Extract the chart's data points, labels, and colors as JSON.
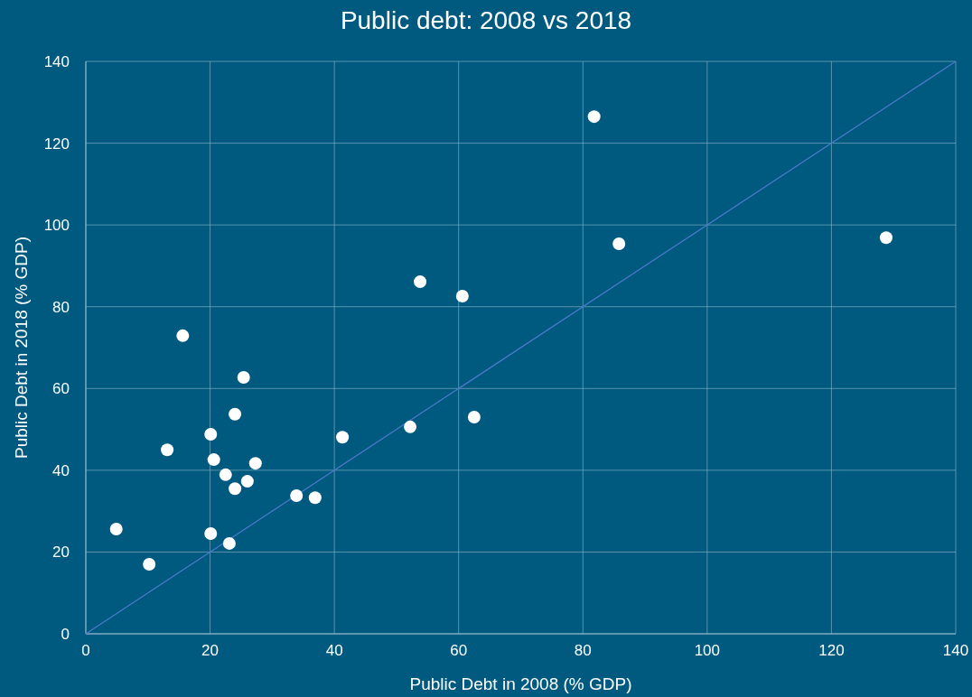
{
  "chart_data": {
    "type": "scatter",
    "title": "Public debt: 2008 vs 2018",
    "xlabel": "Public Debt in 2008 (% GDP)",
    "ylabel": "Public Debt in 2018 (% GDP)",
    "xlim": [
      0,
      140
    ],
    "ylim": [
      0,
      140
    ],
    "xticks": [
      0,
      20,
      40,
      60,
      80,
      100,
      120,
      140
    ],
    "yticks": [
      0,
      20,
      40,
      60,
      80,
      100,
      120,
      140
    ],
    "grid": true,
    "series": [
      {
        "type": "line",
        "color": "#4a78c8",
        "x": [
          0,
          140
        ],
        "values": [
          0,
          140
        ]
      },
      {
        "marker": "circle",
        "color": "#ffffff",
        "x": [
          4.9,
          10.2,
          13.1,
          15.6,
          20.1,
          20.1,
          20.6,
          22.5,
          23.1,
          24.0,
          24.0,
          25.4,
          26.0,
          27.3,
          33.9,
          36.9,
          41.3,
          52.2,
          53.8,
          60.6,
          62.5,
          81.8,
          85.8,
          128.8
        ],
        "values": [
          25.6,
          17.0,
          45.0,
          72.9,
          48.8,
          24.5,
          42.6,
          38.9,
          22.1,
          53.7,
          35.5,
          62.7,
          37.3,
          41.7,
          33.8,
          33.3,
          48.1,
          50.6,
          86.1,
          82.6,
          53.0,
          126.5,
          95.4,
          96.9
        ]
      }
    ]
  }
}
